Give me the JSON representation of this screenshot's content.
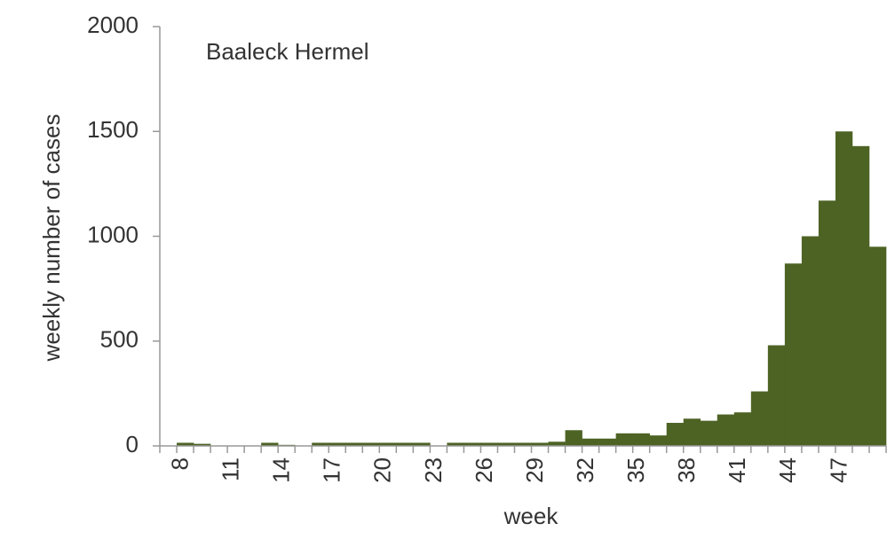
{
  "chart_data": {
    "type": "bar",
    "annotation": "Baaleck Hermel",
    "x_label": "week",
    "y_label": "weekly number of cases",
    "categories": [
      null,
      "8",
      null,
      null,
      "11",
      null,
      null,
      "14",
      null,
      null,
      "17",
      null,
      null,
      "20",
      null,
      null,
      "23",
      null,
      null,
      "26",
      null,
      null,
      "29",
      null,
      null,
      "32",
      null,
      null,
      "35",
      null,
      null,
      "38",
      null,
      null,
      "41",
      null,
      null,
      "44",
      null,
      null,
      "47",
      null,
      null
    ],
    "values": [
      0,
      15,
      10,
      0,
      0,
      0,
      15,
      5,
      0,
      15,
      15,
      15,
      15,
      15,
      15,
      15,
      0,
      15,
      15,
      15,
      15,
      15,
      15,
      20,
      75,
      35,
      35,
      60,
      60,
      50,
      110,
      130,
      120,
      150,
      160,
      260,
      480,
      870,
      1000,
      1170,
      1500,
      1430,
      950
    ],
    "color": "#4d6324",
    "ylim": [
      0,
      2000
    ],
    "yticks": [
      0,
      500,
      1000,
      1500,
      2000
    ],
    "grid": false
  }
}
